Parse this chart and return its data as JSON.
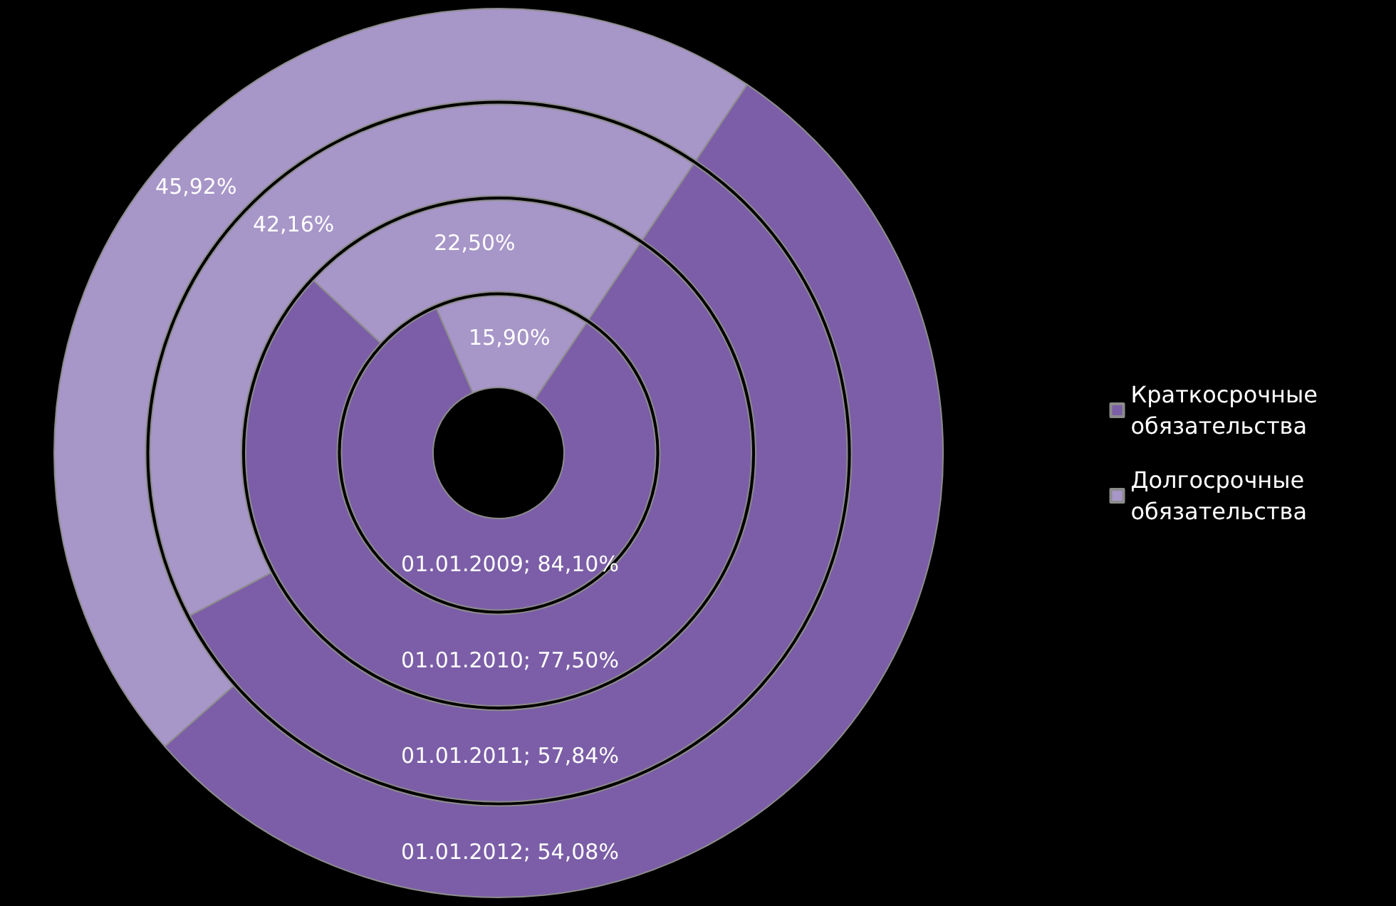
{
  "chart_data": {
    "type": "donut",
    "categories": [
      "Краткосрочные обязательства",
      "Долгосрочные обязательства"
    ],
    "colors": [
      "#7b5ea7",
      "#a796c8"
    ],
    "legend": "right",
    "series": [
      {
        "values": [
          84.1,
          15.9
        ],
        "value_labels": [
          "01.01.2009; 84,10%",
          "15,90%"
        ]
      },
      {
        "values": [
          77.5,
          22.5
        ],
        "value_labels": [
          "01.01.2010; 77,50%",
          "22,50%"
        ]
      },
      {
        "values": [
          57.84,
          42.16
        ],
        "value_labels": [
          "01.01.2011; 57,84%",
          "42,16%"
        ]
      },
      {
        "values": [
          54.08,
          45.92
        ],
        "value_labels": [
          "01.01.2012; 54,08%",
          "45,92%"
        ]
      }
    ]
  }
}
